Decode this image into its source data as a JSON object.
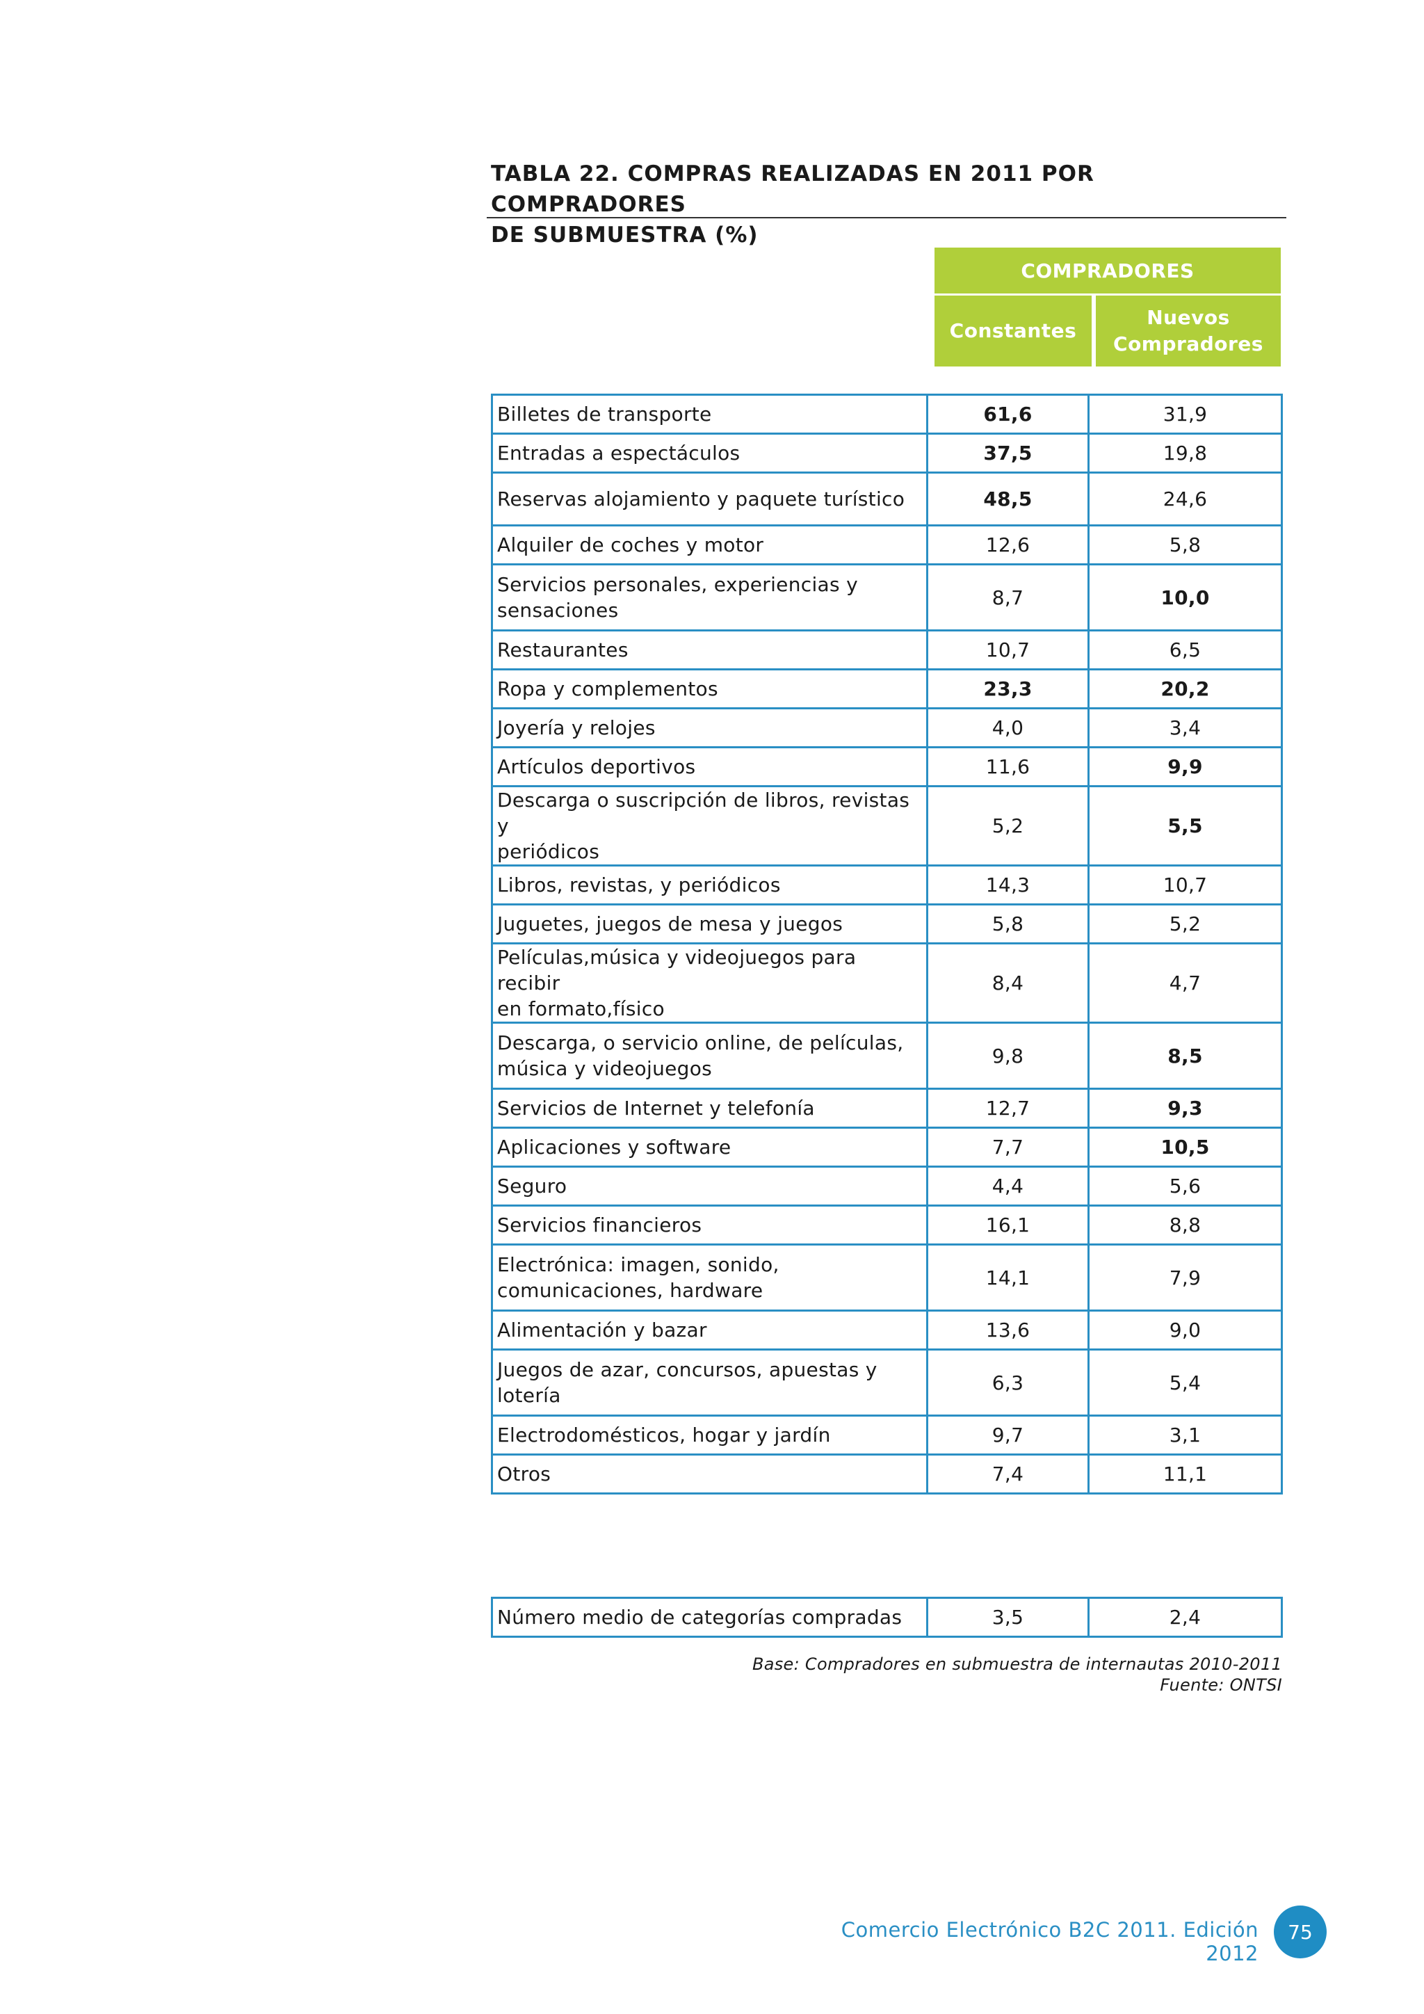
{
  "title_line1": "TABLA 22. COMPRAS REALIZADAS EN 2011 POR COMPRADORES",
  "title_line2": "DE SUBMUESTRA (%)",
  "header": {
    "group": "COMPRADORES",
    "col1": "Constantes",
    "col2_line1": "Nuevos",
    "col2_line2": "Compradores"
  },
  "rows": [
    {
      "label": "Billetes de transporte",
      "constantes": "61,6",
      "nuevos": "31,9"
    },
    {
      "label": "Entradas a espectáculos",
      "constantes": "37,5",
      "nuevos": "19,8"
    },
    {
      "label": "Reservas alojamiento y paquete turístico",
      "constantes": "48,5",
      "nuevos": "24,6"
    },
    {
      "label": "Alquiler de coches y motor",
      "constantes": "12,6",
      "nuevos": "5,8"
    },
    {
      "label_line1": "Servicios personales, experiencias y",
      "label_line2": "sensaciones",
      "constantes": "8,7",
      "nuevos": "10,0"
    },
    {
      "label": "Restaurantes",
      "constantes": "10,7",
      "nuevos": "6,5"
    },
    {
      "label": "Ropa y complementos",
      "constantes": "23,3",
      "nuevos": "20,2"
    },
    {
      "label": "Joyería y relojes",
      "constantes": "4,0",
      "nuevos": "3,4"
    },
    {
      "label": "Artículos deportivos",
      "constantes": "11,6",
      "nuevos": "9,9"
    },
    {
      "label_line1": "Descarga o suscripción de libros, revistas y",
      "label_line2": "periódicos",
      "constantes": "5,2",
      "nuevos": "5,5"
    },
    {
      "label": "Libros, revistas, y periódicos",
      "constantes": "14,3",
      "nuevos": "10,7"
    },
    {
      "label": "Juguetes, juegos de mesa y juegos",
      "constantes": "5,8",
      "nuevos": "5,2"
    },
    {
      "label_line1": "Películas,música y videojuegos para recibir",
      "label_line2": "en formato,físico",
      "constantes": "8,4",
      "nuevos": "4,7"
    },
    {
      "label_line1": "Descarga, o servicio online, de películas,",
      "label_line2": "música y videojuegos",
      "constantes": "9,8",
      "nuevos": "8,5"
    },
    {
      "label": "Servicios de Internet y telefonía",
      "constantes": "12,7",
      "nuevos": "9,3"
    },
    {
      "label": "Aplicaciones y software",
      "constantes": "7,7",
      "nuevos": "10,5"
    },
    {
      "label": "Seguro",
      "constantes": "4,4",
      "nuevos": "5,6"
    },
    {
      "label": "Servicios financieros",
      "constantes": "16,1",
      "nuevos": "8,8"
    },
    {
      "label_line1": "Electrónica: imagen, sonido,",
      "label_line2": "comunicaciones, hardware",
      "constantes": "14,1",
      "nuevos": "7,9"
    },
    {
      "label": "Alimentación y bazar",
      "constantes": "13,6",
      "nuevos": "9,0"
    },
    {
      "label_line1": "Juegos de azar, concursos, apuestas y",
      "label_line2": "lotería",
      "constantes": "6,3",
      "nuevos": "5,4"
    },
    {
      "label": "Electrodomésticos, hogar y jardín",
      "constantes": "9,7",
      "nuevos": "3,1"
    },
    {
      "label": "Otros",
      "constantes": "7,4",
      "nuevos": "11,1"
    }
  ],
  "average": {
    "label": "Número medio de categorías compradas",
    "constantes": "3,5",
    "nuevos": "2,4"
  },
  "note_base": "Base: Compradores en submuestra de internautas 2010-2011",
  "note_source": "Fuente: ONTSI",
  "footer": "Comercio Electrónico B2C 2011. Edición 2012",
  "page_number": "75"
}
